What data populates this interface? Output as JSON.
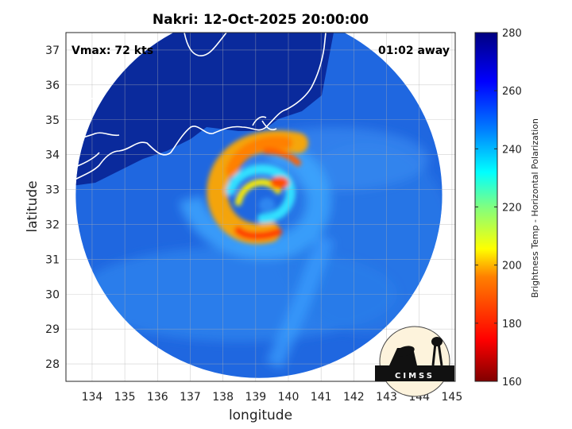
{
  "title": "Nakri: 12-Oct-2025 20:00:00",
  "annotations": {
    "vmax": "Vmax: 72 kts",
    "time_away": "01:02 away"
  },
  "logo": {
    "text": "CIMSS"
  },
  "chart_data": {
    "type": "heatmap",
    "title": "Nakri: 12-Oct-2025 20:00:00",
    "xlabel": "longitude",
    "ylabel": "latitude",
    "xlim": [
      133.2,
      145.1
    ],
    "ylim": [
      27.5,
      37.5
    ],
    "x_ticks": [
      134,
      135,
      136,
      137,
      138,
      139,
      140,
      141,
      142,
      143,
      144,
      145
    ],
    "y_ticks": [
      28,
      29,
      30,
      31,
      32,
      33,
      34,
      35,
      36,
      37
    ],
    "x_tick_labels": [
      "134",
      "135",
      "136",
      "137",
      "138",
      "139",
      "140",
      "141",
      "142",
      "143",
      "144",
      "145"
    ],
    "y_tick_labels": [
      "28",
      "29",
      "30",
      "31",
      "32",
      "33",
      "34",
      "35",
      "36",
      "37"
    ],
    "grid": true,
    "storm_center": {
      "lon": 139.05,
      "lat": 32.75
    },
    "swath": {
      "center_lon": 139.1,
      "center_lat": 32.85,
      "radius_deg": 5.6
    },
    "colorbar": {
      "label": "Brightness Temp - Horizontal Polarization",
      "min": 160,
      "max": 280,
      "ticks": [
        160,
        180,
        200,
        220,
        240,
        260,
        280
      ],
      "tick_labels": [
        "160",
        "180",
        "200",
        "220",
        "240",
        "260",
        "280"
      ],
      "colormap": [
        "#800000",
        "#ff0000",
        "#ff8000",
        "#ffff00",
        "#80ff80",
        "#00ffff",
        "#0080ff",
        "#0000ff",
        "#000080"
      ]
    },
    "colors": {
      "outside_swath": "#ffffff",
      "ocean_background": "#1f67e0",
      "land": "#0a2a9c",
      "coastline": "#ffffff"
    }
  }
}
